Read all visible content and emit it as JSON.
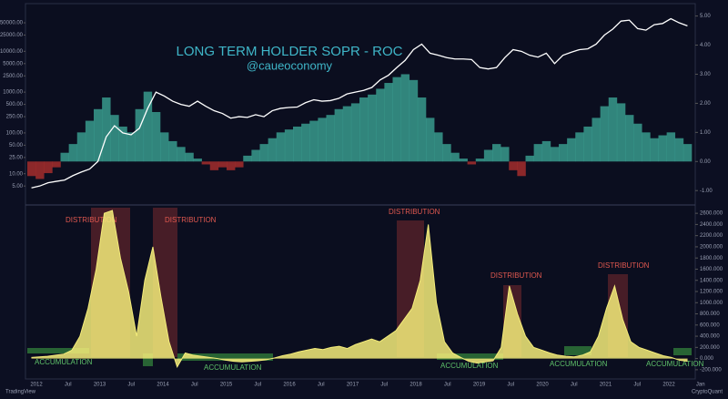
{
  "chart_data": [
    {
      "type": "line",
      "title": "LONG TERM HOLDER SOPR - ROC",
      "subtitle": "@caueoconomy",
      "log_scale": true,
      "series": [
        {
          "name": "Price",
          "color": "#ffffff",
          "values": [
            4.5,
            5,
            6,
            6.5,
            7,
            9,
            11,
            13,
            20,
            80,
            150,
            100,
            90,
            130,
            400,
            1000,
            800,
            600,
            500,
            450,
            600,
            450,
            350,
            300,
            230,
            250,
            240,
            280,
            250,
            350,
            400,
            420,
            430,
            550,
            650,
            600,
            620,
            700,
            900,
            1000,
            1100,
            1300,
            2000,
            2600,
            4000,
            6000,
            11000,
            15000,
            9000,
            8000,
            7000,
            6500,
            6500,
            6300,
            4000,
            3700,
            4000,
            7000,
            11000,
            10000,
            8000,
            7200,
            9000,
            5000,
            8000,
            9500,
            11000,
            11500,
            15000,
            25000,
            35000,
            55000,
            58000,
            36000,
            33000,
            45000,
            48000,
            63000,
            50000,
            42000
          ]
        },
        {
          "name": "SOPR ROC",
          "color": "#3fae9c",
          "negative_color": "#b8322f",
          "axis": "y2",
          "values": [
            -0.5,
            -0.6,
            -0.4,
            -0.2,
            0.3,
            0.6,
            1.0,
            1.4,
            1.8,
            2.2,
            1.6,
            1.2,
            1.0,
            1.8,
            2.4,
            1.7,
            1.0,
            0.7,
            0.5,
            0.3,
            0.1,
            -0.1,
            -0.3,
            -0.2,
            -0.3,
            -0.2,
            0.2,
            0.4,
            0.6,
            0.8,
            1.0,
            1.1,
            1.2,
            1.3,
            1.4,
            1.5,
            1.6,
            1.8,
            1.9,
            2.0,
            2.2,
            2.3,
            2.5,
            2.7,
            2.9,
            3.0,
            2.8,
            2.2,
            1.5,
            1.0,
            0.6,
            0.3,
            0.1,
            -0.1,
            0.1,
            0.4,
            0.6,
            0.5,
            -0.3,
            -0.5,
            0.2,
            0.6,
            0.7,
            0.5,
            0.6,
            0.8,
            1.0,
            1.2,
            1.5,
            1.9,
            2.2,
            2.0,
            1.6,
            1.3,
            1.0,
            0.8,
            0.9,
            1.0,
            0.8,
            0.6
          ]
        }
      ],
      "ylim": [
        2,
        120000
      ],
      "yticks": [
        {
          "value": 5,
          "label": "5.00"
        },
        {
          "value": 10,
          "label": "10.00"
        },
        {
          "value": 25,
          "label": "25.00"
        },
        {
          "value": 50,
          "label": "50.00"
        },
        {
          "value": 100,
          "label": "100.00"
        },
        {
          "value": 250,
          "label": "250.00"
        },
        {
          "value": 500,
          "label": "500.00"
        },
        {
          "value": 1000,
          "label": "1000.00"
        },
        {
          "value": 2500,
          "label": "2500.00"
        },
        {
          "value": 5000,
          "label": "5000.00"
        },
        {
          "value": 10000,
          "label": "10000.00"
        },
        {
          "value": 25000,
          "label": "25000.00"
        },
        {
          "value": 50000,
          "label": "50000.00"
        }
      ],
      "y2lim": [
        -1.4,
        5.3
      ],
      "y2ticks": [
        {
          "value": -1,
          "label": "-1.00"
        },
        {
          "value": 0,
          "label": "0.00"
        },
        {
          "value": 1,
          "label": "1.00"
        },
        {
          "value": 2,
          "label": "2.00"
        },
        {
          "value": 3,
          "label": "3.00"
        },
        {
          "value": 4,
          "label": "4.00"
        },
        {
          "value": 5,
          "label": "5.00"
        }
      ]
    },
    {
      "type": "area",
      "color": "#f4ec7a",
      "values": [
        20,
        30,
        40,
        60,
        80,
        150,
        400,
        900,
        1600,
        2600,
        2650,
        1800,
        1200,
        400,
        1400,
        2000,
        1100,
        300,
        -150,
        100,
        60,
        40,
        20,
        0,
        -30,
        -50,
        -60,
        -50,
        -40,
        -20,
        10,
        50,
        80,
        120,
        150,
        180,
        160,
        200,
        220,
        180,
        250,
        300,
        350,
        300,
        400,
        500,
        700,
        900,
        1400,
        2400,
        1000,
        300,
        100,
        20,
        -50,
        -80,
        -60,
        -40,
        200,
        1300,
        800,
        400,
        200,
        150,
        100,
        60,
        40,
        30,
        60,
        120,
        400,
        900,
        1300,
        700,
        300,
        200,
        150,
        100,
        50,
        20,
        -30,
        -50
      ],
      "ylim": [
        -300,
        2700
      ],
      "yticks": [
        {
          "value": -200,
          "label": "-200.000"
        },
        {
          "value": 0,
          "label": "0.000"
        },
        {
          "value": 200,
          "label": "200.000"
        },
        {
          "value": 400,
          "label": "400.000"
        },
        {
          "value": 600,
          "label": "600.000"
        },
        {
          "value": 800,
          "label": "800.000"
        },
        {
          "value": 1000,
          "label": "1000.000"
        },
        {
          "value": 1200,
          "label": "1200.000"
        },
        {
          "value": 1400,
          "label": "1400.000"
        },
        {
          "value": 1600,
          "label": "1600.000"
        },
        {
          "value": 1800,
          "label": "1800.000"
        },
        {
          "value": 2000,
          "label": "2000.000"
        },
        {
          "value": 2200,
          "label": "2200.000"
        },
        {
          "value": 2400,
          "label": "2400.000"
        },
        {
          "value": 2600,
          "label": "2600.000"
        }
      ],
      "x_axis_labels": [
        "2012",
        "Jul",
        "2013",
        "Jul",
        "2014",
        "Jul",
        "2015",
        "Jul",
        "2016",
        "Jul",
        "2017",
        "Jul",
        "2018",
        "Jul",
        "2019",
        "Jul",
        "2020",
        "Jul",
        "2021",
        "Jul",
        "2022",
        "Jan"
      ],
      "distribution_labels": [
        "DISTRIBUTION",
        "DISTRIBUTION",
        "DISTRIBUTION",
        "DISTRIBUTION",
        "DISTRIBUTION"
      ],
      "accumulation_labels": [
        "ACCUMULATION",
        "ACCUMULATION",
        "ACCUMULATION",
        "ACCUMULATION",
        "ACCUMULATION"
      ],
      "footer_left": "TradingView",
      "footer_right": "CryptoQuant"
    }
  ]
}
